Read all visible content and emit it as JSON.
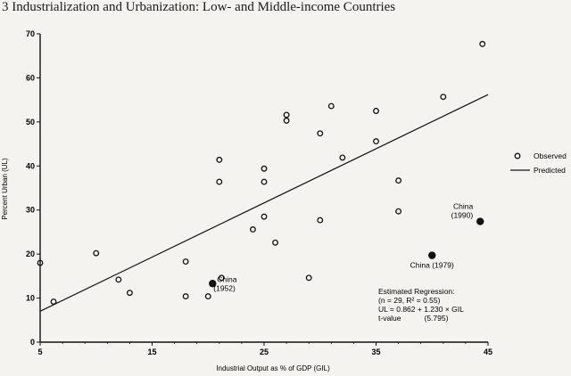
{
  "chart_data": {
    "type": "scatter",
    "title": "3  Industrialization and Urbanization: Low- and Middle-income Countries",
    "xlabel": "Industrial Output as % of GDP (GIL)",
    "ylabel": "Percent Urban (UL)",
    "xlim": [
      5,
      45
    ],
    "ylim": [
      0,
      70
    ],
    "x_ticks": [
      "5",
      "15",
      "25",
      "35",
      "45"
    ],
    "y_ticks": [
      "0",
      "10",
      "20",
      "30",
      "40",
      "50",
      "60",
      "70"
    ],
    "grid": false,
    "legend_position": "right",
    "series": [
      {
        "name": "Observed",
        "marker": "open-circle",
        "points": [
          [
            5.0,
            18
          ],
          [
            6.2,
            9.2
          ],
          [
            10.0,
            20.2
          ],
          [
            12.0,
            14.2
          ],
          [
            13.0,
            11.2
          ],
          [
            18.0,
            18.3
          ],
          [
            18.0,
            10.4
          ],
          [
            20.0,
            10.4
          ],
          [
            21.0,
            41.4
          ],
          [
            21.0,
            36.4
          ],
          [
            21.2,
            14.6
          ],
          [
            24.0,
            25.6
          ],
          [
            25.0,
            39.4
          ],
          [
            25.0,
            36.4
          ],
          [
            25.0,
            28.5
          ],
          [
            26.0,
            22.6
          ],
          [
            27.0,
            51.6
          ],
          [
            27.0,
            50.3
          ],
          [
            29.0,
            14.6
          ],
          [
            30.0,
            47.4
          ],
          [
            30.0,
            27.7
          ],
          [
            31.0,
            53.6
          ],
          [
            32.0,
            41.9
          ],
          [
            35.0,
            52.5
          ],
          [
            35.0,
            45.6
          ],
          [
            37.0,
            36.7
          ],
          [
            37.0,
            29.7
          ],
          [
            41.0,
            55.7
          ],
          [
            44.5,
            67.7
          ]
        ]
      },
      {
        "name": "Predicted",
        "type": "line",
        "intercept": 0.862,
        "slope": 1.23,
        "x_range": [
          5,
          45
        ]
      },
      {
        "name": "China",
        "marker": "filled-circle",
        "points": [
          {
            "x": 20.4,
            "y": 13.3,
            "label": "China\n(1952)"
          },
          {
            "x": 40.0,
            "y": 19.7,
            "label": "China (1979)"
          },
          {
            "x": 44.3,
            "y": 27.4,
            "label": "China\n(1990)"
          }
        ]
      }
    ],
    "legend": [
      {
        "label": "Observed",
        "marker": "open-circle"
      },
      {
        "label": "Predicted",
        "marker": "line"
      }
    ],
    "annotation": [
      "Estimated Regression:",
      "(n = 29, R² = 0.55)",
      "UL = 0.862 + 1.230 × GIL",
      "t-value           (5.795)"
    ]
  }
}
